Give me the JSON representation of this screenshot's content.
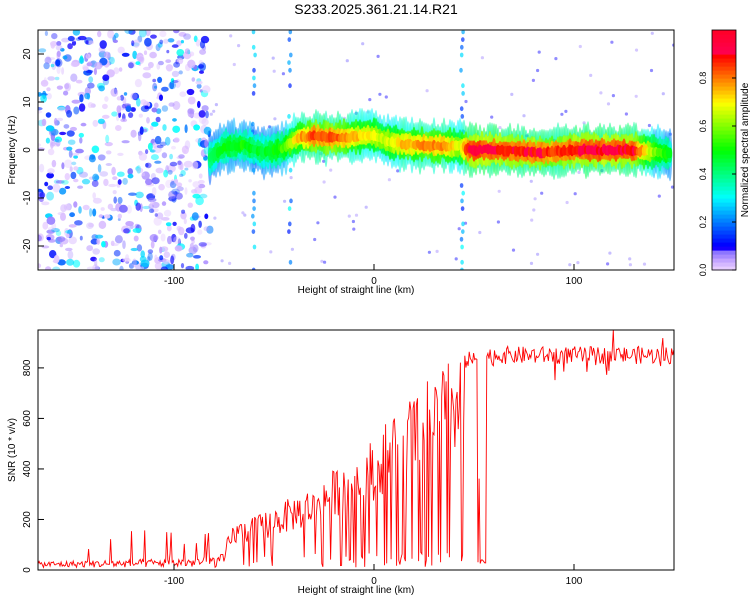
{
  "title": "S233.2025.361.21.14.R21",
  "chart_data": [
    {
      "type": "heatmap",
      "title": "S233.2025.361.21.14.R21",
      "xlabel": "Height of straight line (km)",
      "ylabel": "Frequency (Hz)",
      "xlim": [
        -168,
        150
      ],
      "ylim": [
        -25,
        25
      ],
      "xticks": [
        -100,
        0,
        100
      ],
      "yticks": [
        -20,
        -10,
        0,
        10,
        20
      ],
      "colorbar": {
        "label": "Normalized spectral amplitude",
        "range": [
          0.0,
          1.0
        ],
        "ticks": [
          0.0,
          0.2,
          0.4,
          0.6,
          0.8
        ]
      },
      "noise_region_km": [
        -168,
        -82
      ],
      "vertical_streaks_km": [
        -60,
        -42,
        44
      ],
      "ridge": {
        "x": [
          -82,
          -75,
          -65,
          -55,
          -45,
          -38,
          -30,
          -20,
          -10,
          0,
          5,
          15,
          25,
          35,
          43,
          48,
          60,
          70,
          80,
          90,
          100,
          110,
          120,
          130,
          140,
          148
        ],
        "y": [
          -1.5,
          0.5,
          1.0,
          -0.5,
          0.5,
          2.5,
          2.8,
          2.5,
          2.8,
          3.2,
          2.0,
          1.2,
          1.0,
          0.8,
          0.8,
          0.0,
          0.0,
          -0.2,
          -0.5,
          -0.5,
          0.0,
          0.0,
          0.0,
          0.0,
          -0.5,
          -0.8
        ],
        "amplitude": [
          0.45,
          0.5,
          0.5,
          0.45,
          0.55,
          0.75,
          0.85,
          0.85,
          0.75,
          0.7,
          0.65,
          0.75,
          0.8,
          0.8,
          0.65,
          0.95,
          0.92,
          0.88,
          0.9,
          0.85,
          0.9,
          0.92,
          0.92,
          0.9,
          0.6,
          0.5
        ]
      }
    },
    {
      "type": "line",
      "xlabel": "Height of straight line (km)",
      "ylabel": "SNR (10 * v/v)",
      "xlim": [
        -168,
        150
      ],
      "ylim": [
        0,
        950
      ],
      "xticks": [
        -100,
        0,
        100
      ],
      "yticks": [
        0,
        200,
        400,
        600,
        800
      ],
      "series": [
        {
          "name": "SNR",
          "color": "#ff0000",
          "envelope_x": [
            -168,
            -130,
            -100,
            -85,
            -75,
            -70,
            -60,
            -50,
            -40,
            -30,
            -20,
            -10,
            0,
            10,
            20,
            30,
            40,
            45,
            50,
            55,
            60,
            70,
            80,
            90,
            100,
            110,
            120,
            130,
            140,
            150
          ],
          "envelope_y": [
            40,
            50,
            60,
            70,
            90,
            180,
            200,
            240,
            280,
            320,
            380,
            440,
            500,
            600,
            670,
            740,
            810,
            830,
            830,
            840,
            850,
            850,
            850,
            850,
            850,
            850,
            850,
            850,
            850,
            850
          ],
          "dropout_km": [
            [
              52,
              56
            ]
          ]
        }
      ]
    }
  ]
}
